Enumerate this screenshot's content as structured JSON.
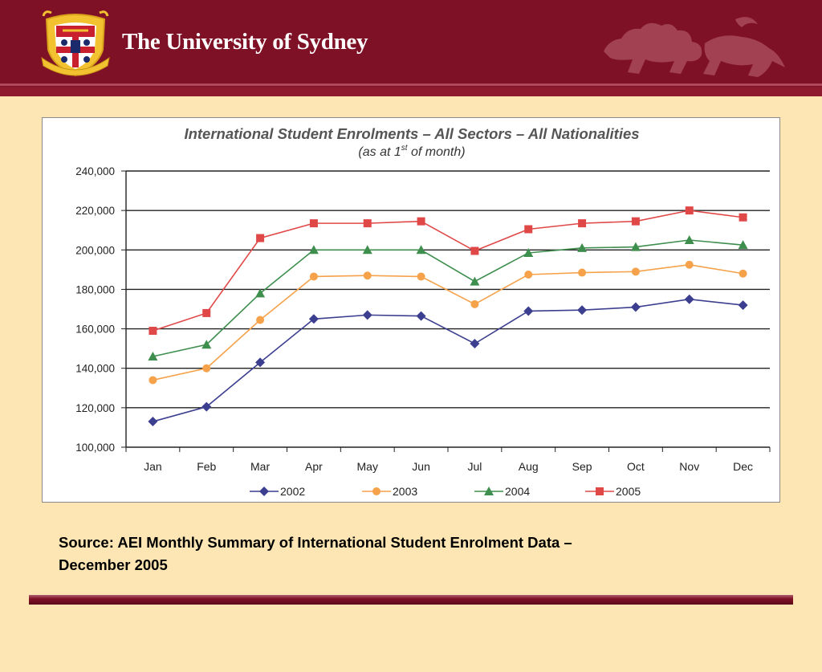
{
  "header": {
    "university_name": "The University of Sydney",
    "crest_icon": "university-crest-icon",
    "lion_icon": "heraldic-lion-icon",
    "colors": {
      "maroon": "#7f1126",
      "background": "#fde6b3"
    }
  },
  "chart_data": {
    "type": "line",
    "title": "International Student Enrolments – All Sectors – All Nationalities",
    "subtitle_pre": "(as at 1",
    "subtitle_sup": "st",
    "subtitle_post": " of month)",
    "xlabel": "",
    "ylabel": "",
    "categories": [
      "Jan",
      "Feb",
      "Mar",
      "Apr",
      "May",
      "Jun",
      "Jul",
      "Aug",
      "Sep",
      "Oct",
      "Nov",
      "Dec"
    ],
    "y_ticks": [
      "100,000",
      "120,000",
      "140,000",
      "160,000",
      "180,000",
      "200,000",
      "220,000",
      "240,000"
    ],
    "ylim": [
      100000,
      240000
    ],
    "grid": "horizontal",
    "legend_position": "bottom",
    "series": [
      {
        "name": "2002",
        "color": "#3c3f8f",
        "marker": "diamond",
        "values": [
          113000,
          120500,
          143000,
          165000,
          167000,
          166500,
          152500,
          169000,
          169500,
          171000,
          175000,
          172000
        ]
      },
      {
        "name": "2003",
        "color": "#f5a24b",
        "marker": "circle",
        "values": [
          134000,
          140000,
          164500,
          186500,
          187000,
          186500,
          172500,
          187500,
          188500,
          189000,
          192500,
          188000
        ]
      },
      {
        "name": "2004",
        "color": "#3e8e4e",
        "marker": "triangle",
        "values": [
          146000,
          152000,
          178000,
          200000,
          200000,
          200000,
          184000,
          198500,
          201000,
          201500,
          205000,
          202500
        ]
      },
      {
        "name": "2005",
        "color": "#e04848",
        "marker": "square",
        "values": [
          159000,
          168000,
          206000,
          213500,
          213500,
          214500,
          199500,
          210500,
          213500,
          214500,
          220000,
          216500
        ]
      }
    ]
  },
  "source": {
    "line1": "Source: AEI Monthly Summary of International Student Enrolment Data –",
    "line2": "December 2005"
  }
}
